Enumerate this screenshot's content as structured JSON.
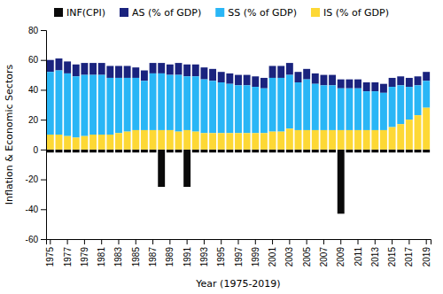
{
  "chart_data": {
    "type": "bar",
    "stacked": true,
    "xlabel": "Year (1975-2019)",
    "ylabel": "Inflation & Economic Sectors",
    "categories": [
      "1975",
      null,
      "1977",
      null,
      "1979",
      null,
      "1981",
      null,
      "1983",
      null,
      "1985",
      null,
      "1987",
      null,
      "1989",
      null,
      "1991",
      null,
      "1993",
      null,
      "1995",
      null,
      "1997",
      null,
      "1999",
      null,
      "2001",
      null,
      "2003",
      null,
      "2005",
      null,
      "2007",
      null,
      "2009",
      null,
      "2011",
      null,
      "2013",
      null,
      "2015",
      null,
      "2017",
      null,
      "2019"
    ],
    "series": [
      {
        "name": "INF(CPI)",
        "color": "#0a0a0a",
        "values": [
          -2,
          -2,
          -2,
          -2,
          -2,
          -2,
          -2,
          -2,
          -2,
          -2,
          -2,
          -2,
          -2,
          -25,
          -2,
          -2,
          -25,
          -2,
          -2,
          -2,
          -2,
          -2,
          -2,
          -2,
          -2,
          -2,
          -2,
          -2,
          -2,
          -2,
          -2,
          -2,
          -2,
          -2,
          -43,
          -2,
          -2,
          -2,
          -2,
          -2,
          -2,
          -2,
          -2,
          -2,
          -2
        ]
      },
      {
        "name": "AS (% of GDP)",
        "color": "#1a237e",
        "values": [
          8,
          8,
          8,
          8,
          8,
          8,
          8,
          8,
          8,
          8,
          7,
          7,
          7,
          7,
          7,
          8,
          8,
          8,
          8,
          8,
          7,
          7,
          7,
          7,
          7,
          7,
          8,
          8,
          8,
          7,
          7,
          7,
          7,
          7,
          6,
          6,
          6,
          6,
          6,
          6,
          6,
          6,
          6,
          6,
          6
        ]
      },
      {
        "name": "SS (% of GDP)",
        "color": "#29b6f6",
        "values": [
          42,
          43,
          42,
          41,
          41,
          40,
          40,
          38,
          37,
          36,
          35,
          33,
          38,
          38,
          37,
          38,
          36,
          37,
          36,
          35,
          34,
          33,
          32,
          32,
          31,
          30,
          36,
          36,
          36,
          32,
          34,
          31,
          30,
          30,
          28,
          28,
          28,
          26,
          26,
          25,
          27,
          26,
          22,
          20,
          18
        ]
      },
      {
        "name": "IS (% of GDP)",
        "color": "#fdd835",
        "values": [
          10,
          10,
          9,
          8,
          9,
          10,
          10,
          10,
          11,
          12,
          13,
          13,
          13,
          13,
          13,
          12,
          13,
          12,
          11,
          11,
          11,
          11,
          11,
          11,
          11,
          11,
          12,
          12,
          14,
          13,
          13,
          13,
          13,
          13,
          13,
          13,
          13,
          13,
          13,
          13,
          15,
          17,
          20,
          23,
          28
        ]
      }
    ],
    "ylim": [
      -60,
      80
    ],
    "yticks": [
      -60,
      -40,
      -20,
      0,
      20,
      40,
      60,
      80
    ],
    "grid": false,
    "legend": "top"
  }
}
